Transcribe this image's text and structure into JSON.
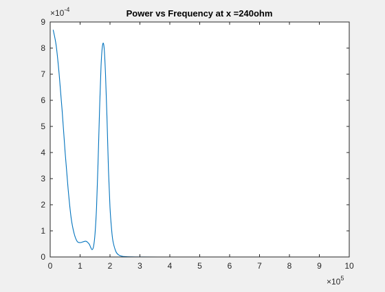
{
  "chart_data": {
    "type": "line",
    "title": "Power vs Frequency at x =240ohm",
    "xlabel": "",
    "ylabel": "",
    "x_unit_label": "×10",
    "x_unit_exponent": "5",
    "y_unit_label": "×10",
    "y_unit_exponent": "-4",
    "xlim": [
      0,
      10
    ],
    "ylim": [
      0,
      9
    ],
    "x_ticks": [
      0,
      1,
      2,
      3,
      4,
      5,
      6,
      7,
      8,
      9,
      10
    ],
    "y_ticks": [
      0,
      1,
      2,
      3,
      4,
      5,
      6,
      7,
      8,
      9
    ],
    "grid": false,
    "series": [
      {
        "color": "#0072bd",
        "x": [
          0.1,
          0.2,
          0.3,
          0.4,
          0.5,
          0.6,
          0.7,
          0.8,
          0.9,
          1.0,
          1.1,
          1.2,
          1.3,
          1.35,
          1.4,
          1.45,
          1.5,
          1.55,
          1.6,
          1.65,
          1.7,
          1.75,
          1.8,
          1.85,
          1.9,
          1.95,
          2.0,
          2.05,
          2.1,
          2.2,
          2.3,
          2.4,
          2.5,
          2.7,
          3.0,
          4.0,
          5.0,
          6.0,
          7.0,
          8.0,
          9.0,
          10.0
        ],
        "y": [
          8.7,
          8.1,
          7.0,
          5.6,
          4.0,
          2.6,
          1.5,
          0.9,
          0.6,
          0.55,
          0.58,
          0.6,
          0.5,
          0.38,
          0.28,
          0.4,
          0.9,
          1.9,
          3.6,
          5.6,
          7.3,
          8.1,
          8.05,
          7.0,
          5.3,
          3.3,
          1.9,
          1.1,
          0.6,
          0.2,
          0.07,
          0.03,
          0.015,
          0.005,
          0.001,
          0,
          0,
          0,
          0,
          0,
          0,
          0
        ]
      }
    ]
  }
}
